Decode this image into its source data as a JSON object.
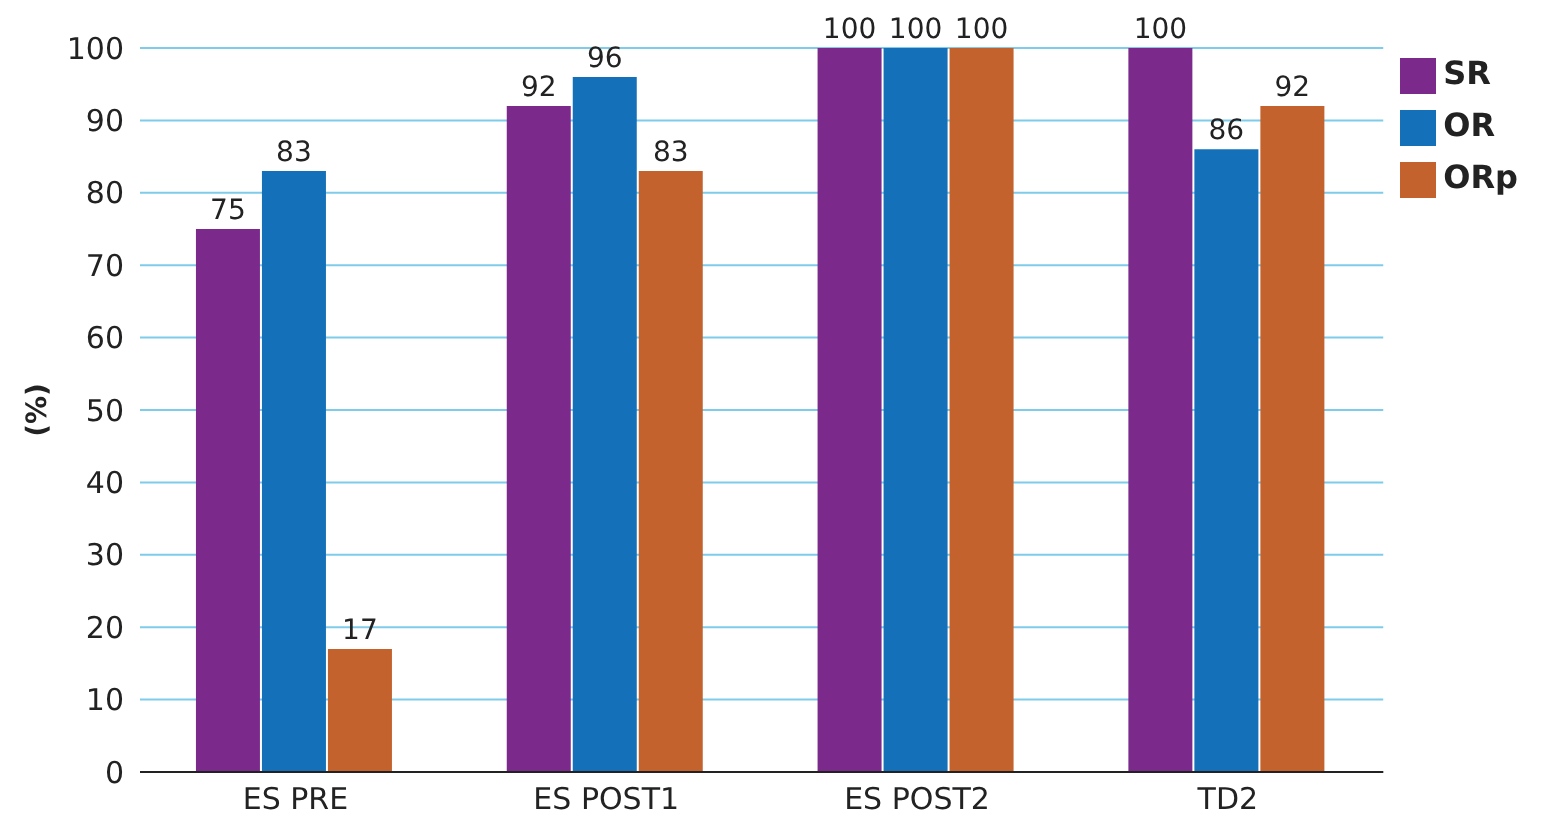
{
  "chart_data": {
    "type": "bar",
    "ylabel": "(%)",
    "categories": [
      "ES PRE",
      "ES POST1",
      "ES POST2",
      "TD2"
    ],
    "series": [
      {
        "name": "SR",
        "color": "#7b2a8c",
        "values": [
          75,
          92,
          100,
          100
        ]
      },
      {
        "name": "OR",
        "color": "#1470b8",
        "values": [
          83,
          96,
          100,
          86
        ]
      },
      {
        "name": "ORp",
        "color": "#c4622d",
        "values": [
          17,
          83,
          100,
          92
        ]
      }
    ],
    "ylim": [
      0,
      100
    ],
    "yticks": [
      0,
      10,
      20,
      30,
      40,
      50,
      60,
      70,
      80,
      90,
      100
    ],
    "grid": "y",
    "legend": "top right",
    "data_labels": true
  }
}
